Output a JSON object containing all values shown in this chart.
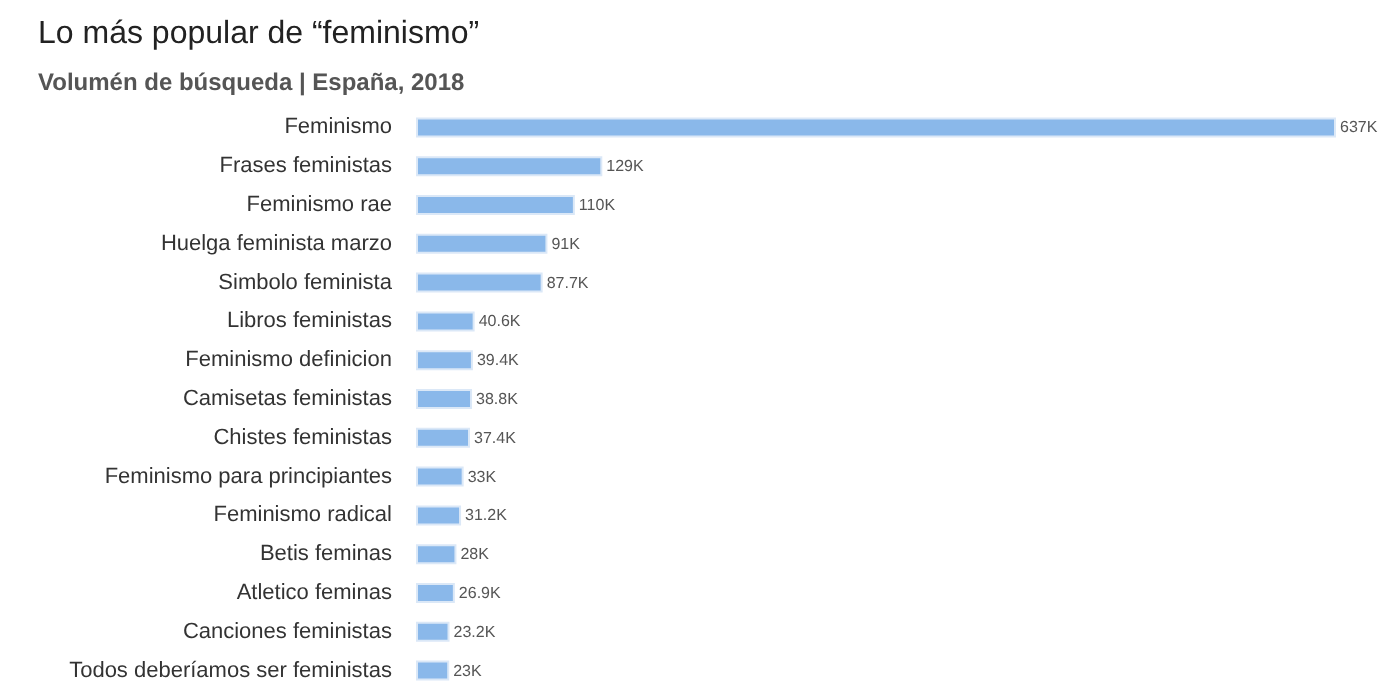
{
  "chart_data": {
    "type": "bar",
    "orientation": "horizontal",
    "title": "Lo más popular de “feminismo”",
    "subtitle": "Volumén de búsqueda | España, 2018",
    "categories": [
      "Feminismo",
      "Frases feministas",
      "Feminismo rae",
      "Huelga feminista marzo",
      "Simbolo feminista",
      "Libros feministas",
      "Feminismo definicion",
      "Camisetas feministas",
      "Chistes feministas",
      "Feminismo para principiantes",
      "Feminismo radical",
      "Betis feminas",
      "Atletico feminas",
      "Canciones feministas",
      "Todos deberíamos ser feministas"
    ],
    "values": [
      637000,
      129000,
      110000,
      91000,
      87700,
      40600,
      39400,
      38800,
      37400,
      33000,
      31200,
      28000,
      26900,
      23200,
      23000
    ],
    "value_labels": [
      "637K",
      "129K",
      "110K",
      "91K",
      "87.7K",
      "40.6K",
      "39.4K",
      "38.8K",
      "37.4K",
      "33K",
      "31.2K",
      "28K",
      "26.9K",
      "23.2K",
      "23K"
    ],
    "color": "#8ab8ea"
  }
}
